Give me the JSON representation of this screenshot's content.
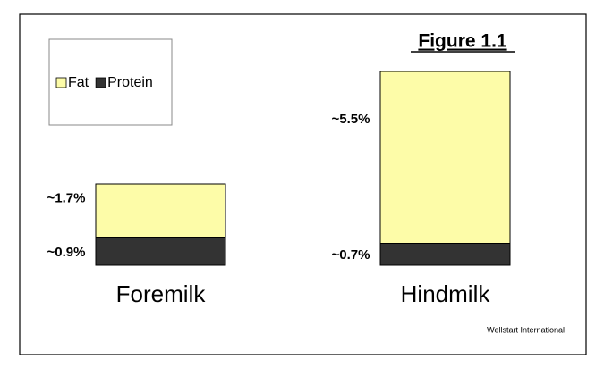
{
  "chart_data": {
    "type": "bar",
    "stacked": true,
    "title": "Figure 1.1",
    "categories": [
      "Foremilk",
      "Hindmilk"
    ],
    "series": [
      {
        "name": "Fat",
        "color": "#fdfca8",
        "values": [
          1.7,
          5.5
        ],
        "value_labels": [
          "~1.7%",
          "~5.5%"
        ]
      },
      {
        "name": "Protein",
        "color": "#333333",
        "values": [
          0.9,
          0.7
        ],
        "value_labels": [
          "~0.9%",
          "~0.7%"
        ]
      }
    ],
    "source": "Wellstart International"
  }
}
